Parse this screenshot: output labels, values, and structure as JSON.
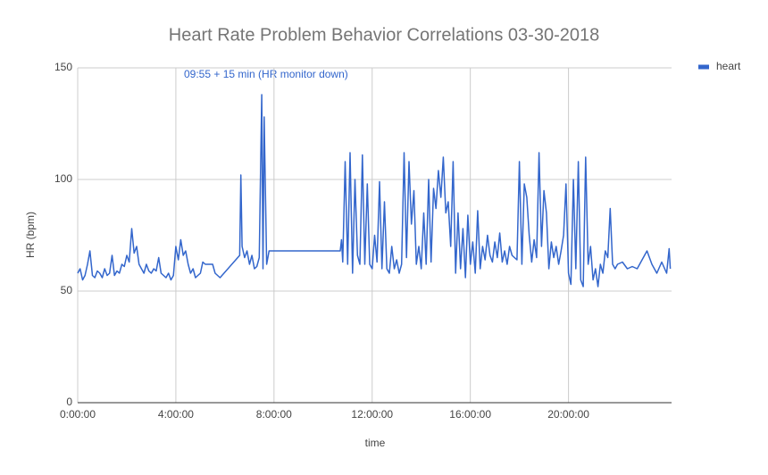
{
  "chart_data": {
    "type": "line",
    "title": "Heart Rate Problem Behavior Correlations 03-30-2018",
    "x_label": "time",
    "y_label": "HR (bpm)",
    "annotations": [
      "09:55 + 15 min (HR monitor down)"
    ],
    "legend": "right",
    "grid": true,
    "xlim": [
      0,
      24.2
    ],
    "xticks": [
      {
        "value": 0,
        "label": "0:00:00"
      },
      {
        "value": 4,
        "label": "4:00:00"
      },
      {
        "value": 8,
        "label": "8:00:00"
      },
      {
        "value": 12,
        "label": "12:00:00"
      },
      {
        "value": 16,
        "label": "16:00:00"
      },
      {
        "value": 20,
        "label": "20:00:00"
      }
    ],
    "ylim": [
      0,
      150
    ],
    "yticks": [
      0,
      50,
      100,
      150
    ],
    "x": [
      0.0,
      0.1,
      0.2,
      0.3,
      0.4,
      0.5,
      0.6,
      0.7,
      0.8,
      0.9,
      1.0,
      1.1,
      1.2,
      1.3,
      1.4,
      1.5,
      1.6,
      1.7,
      1.8,
      1.9,
      2.0,
      2.1,
      2.2,
      2.3,
      2.4,
      2.5,
      2.6,
      2.7,
      2.8,
      2.9,
      3.0,
      3.1,
      3.2,
      3.3,
      3.4,
      3.5,
      3.6,
      3.7,
      3.8,
      3.9,
      4.0,
      4.1,
      4.2,
      4.3,
      4.4,
      4.5,
      4.6,
      4.7,
      4.8,
      4.9,
      5.0,
      5.1,
      5.2,
      5.3,
      5.5,
      5.6,
      5.8,
      6.6,
      6.65,
      6.7,
      6.8,
      6.9,
      7.0,
      7.1,
      7.2,
      7.3,
      7.4,
      7.5,
      7.55,
      7.6,
      7.7,
      7.8,
      10.7,
      10.75,
      10.8,
      10.9,
      11.0,
      11.1,
      11.2,
      11.3,
      11.4,
      11.5,
      11.6,
      11.7,
      11.8,
      11.9,
      12.0,
      12.1,
      12.2,
      12.3,
      12.4,
      12.5,
      12.6,
      12.7,
      12.8,
      12.9,
      13.0,
      13.1,
      13.2,
      13.3,
      13.4,
      13.5,
      13.6,
      13.7,
      13.8,
      13.9,
      14.0,
      14.1,
      14.2,
      14.3,
      14.4,
      14.5,
      14.6,
      14.7,
      14.8,
      14.9,
      15.0,
      15.1,
      15.2,
      15.3,
      15.4,
      15.5,
      15.6,
      15.7,
      15.8,
      15.9,
      16.0,
      16.1,
      16.2,
      16.3,
      16.4,
      16.5,
      16.6,
      16.7,
      16.8,
      16.9,
      17.0,
      17.1,
      17.2,
      17.3,
      17.4,
      17.5,
      17.6,
      17.7,
      17.8,
      17.9,
      18.0,
      18.1,
      18.2,
      18.3,
      18.4,
      18.5,
      18.6,
      18.7,
      18.8,
      18.9,
      19.0,
      19.1,
      19.2,
      19.3,
      19.4,
      19.5,
      19.6,
      19.7,
      19.8,
      19.9,
      20.0,
      20.1,
      20.2,
      20.3,
      20.4,
      20.5,
      20.6,
      20.7,
      20.8,
      20.9,
      21.0,
      21.1,
      21.2,
      21.3,
      21.4,
      21.5,
      21.6,
      21.7,
      21.8,
      21.9,
      22.0,
      22.2,
      22.4,
      22.6,
      22.8,
      23.0,
      23.2,
      23.4,
      23.6,
      23.8,
      24.0,
      24.1,
      24.15
    ],
    "series": [
      {
        "name": "heart",
        "color": "#3366cc",
        "values": [
          58,
          60,
          55,
          57,
          62,
          68,
          57,
          56,
          59,
          58,
          56,
          60,
          57,
          58,
          66,
          57,
          59,
          58,
          62,
          61,
          66,
          63,
          78,
          67,
          70,
          62,
          60,
          58,
          62,
          59,
          58,
          60,
          59,
          65,
          58,
          57,
          56,
          58,
          55,
          57,
          70,
          64,
          73,
          66,
          68,
          62,
          58,
          60,
          56,
          57,
          58,
          63,
          62,
          62,
          62,
          58,
          56,
          66,
          102,
          70,
          65,
          68,
          62,
          66,
          60,
          61,
          65,
          138,
          60,
          128,
          62,
          68,
          68,
          73,
          63,
          108,
          62,
          112,
          58,
          100,
          66,
          62,
          111,
          62,
          98,
          62,
          60,
          75,
          63,
          99,
          60,
          90,
          60,
          58,
          70,
          60,
          64,
          58,
          62,
          112,
          65,
          108,
          80,
          95,
          62,
          70,
          60,
          85,
          62,
          100,
          63,
          96,
          87,
          104,
          92,
          110,
          85,
          90,
          70,
          108,
          58,
          85,
          60,
          78,
          56,
          84,
          62,
          72,
          58,
          86,
          60,
          70,
          64,
          75,
          66,
          63,
          72,
          65,
          76,
          63,
          68,
          62,
          70,
          66,
          65,
          64,
          108,
          62,
          98,
          92,
          75,
          63,
          73,
          65,
          112,
          70,
          95,
          85,
          60,
          72,
          65,
          70,
          62,
          68,
          75,
          98,
          58,
          53,
          100,
          60,
          108,
          55,
          52,
          110,
          62,
          70,
          55,
          60,
          52,
          62,
          58,
          68,
          65,
          87,
          62,
          60,
          62,
          63,
          60,
          61,
          60,
          64,
          68,
          62,
          58,
          63,
          58,
          69,
          60
        ]
      }
    ]
  }
}
